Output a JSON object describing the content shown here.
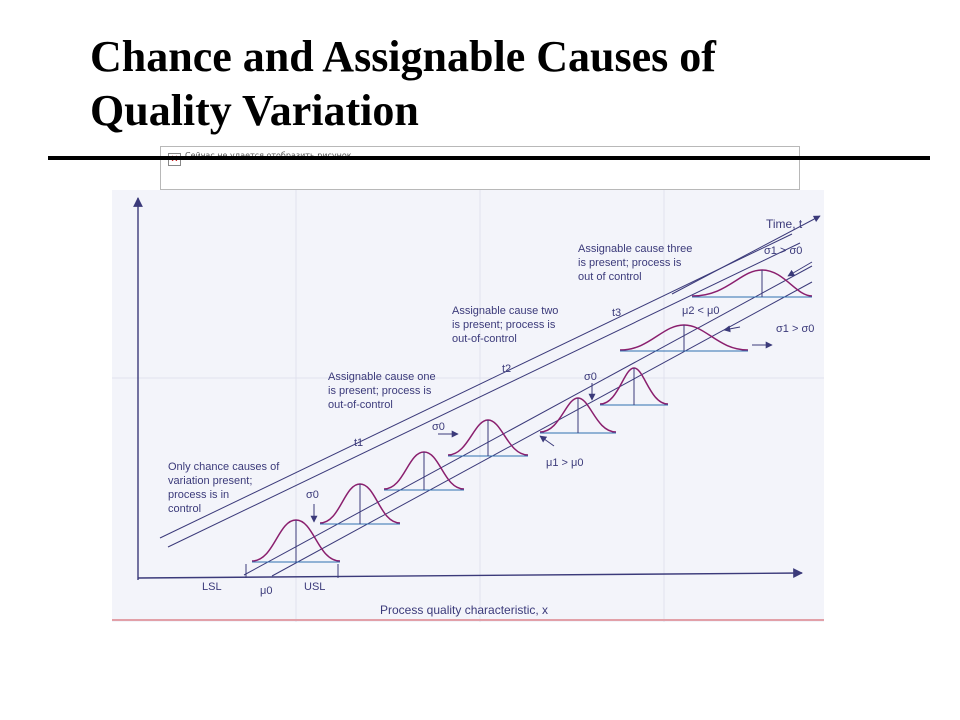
{
  "slide": {
    "title_line1": "Chance and Assignable Causes of",
    "title_line2": "Quality Variation"
  },
  "placeholder": {
    "icon": "broken-image-icon",
    "text": "Сейчас не удается отобразить рисунок."
  },
  "figure": {
    "time_axis_label": "Time, t",
    "x_axis_label": "Process quality characteristic, x",
    "lsl": "LSL",
    "usl": "USL",
    "mu0": "μ0",
    "t1": "t1",
    "t2": "t2",
    "t3": "t3",
    "sigma0_a": "σ0",
    "sigma0_b": "σ0",
    "sigma0_c": "σ0",
    "mu1_rel": "μ1 > μ0",
    "mu2_rel": "μ2 < μ0",
    "sigma1_rel_a": "σ1 > σ0",
    "sigma1_rel_b": "σ1 > σ0",
    "note_chance": [
      "Only chance causes of",
      "variation present;",
      "process is in",
      "control"
    ],
    "note_cause1": [
      "Assignable cause one",
      "is present; process is",
      "out-of-control"
    ],
    "note_cause2": [
      "Assignable cause two",
      "is present; process is",
      "out-of-control"
    ],
    "note_cause3": [
      "Assignable cause three",
      "is present; process is",
      "out of control"
    ],
    "colors": {
      "background": "#f3f4fa",
      "ink": "#3b3a7a",
      "curve": "#8a1f6e",
      "spec": "#2f6fb0"
    }
  }
}
